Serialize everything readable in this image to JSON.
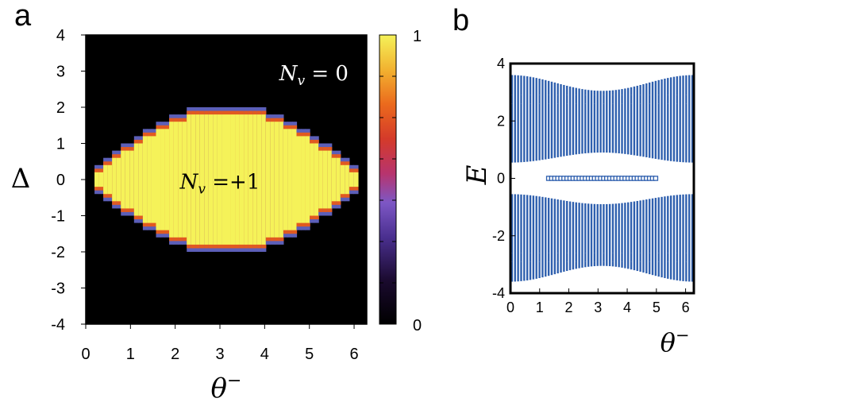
{
  "panels": {
    "a": {
      "label": "a"
    },
    "b": {
      "label": "b"
    }
  },
  "chart_data": [
    {
      "type": "heatmap",
      "panel": "a",
      "title": "",
      "xlabel": "θ⁻",
      "ylabel": "Δ",
      "xlim": [
        0,
        6.2832
      ],
      "ylim": [
        -4,
        4
      ],
      "xticks": [
        "0",
        "1",
        "2",
        "3",
        "4",
        "5",
        "6"
      ],
      "yticks": [
        "4",
        "3",
        "2",
        "1",
        "0",
        "-1",
        "-2",
        "-3",
        "-4"
      ],
      "colorbar": {
        "min": 0,
        "max": 1,
        "labels": [
          "1",
          "0"
        ]
      },
      "region_boundary": {
        "description": "N_v = +1 inside |Δ| < 2|sin(θ⁻/2)|, N_v = 0 outside",
        "max_abs_delta": 2
      },
      "annotations": [
        {
          "text_main": "N",
          "text_sub": "v",
          "text_rest": " = 0",
          "x": 5.1,
          "y": 2.75
        },
        {
          "text_main": "N",
          "text_sub": "v",
          "text_rest": " =+1",
          "x": 3.0,
          "y": -0.25
        }
      ],
      "colors": {
        "outside": "#000000",
        "inside": "#f5f259",
        "edge1": "#e25a1f",
        "edge2": "#5c5fb8"
      }
    },
    {
      "type": "scatter",
      "panel": "b",
      "title": "",
      "xlabel": "θ⁻",
      "ylabel": "E",
      "xlim": [
        0,
        6.2832
      ],
      "ylim": [
        -4,
        4
      ],
      "xticks": [
        "0",
        "1",
        "2",
        "3",
        "4",
        "5",
        "6"
      ],
      "yticks": [
        "4",
        "2",
        "0",
        "-2",
        "-4"
      ],
      "bands": {
        "n_columns": 60,
        "outer_edge": {
          "at_0": 3.6,
          "at_pi": 3.05,
          "at_2pi": 3.6
        },
        "inner_edge": {
          "at_0": 0.55,
          "at_pi": 0.9,
          "at_2pi": 0.55
        },
        "zero_modes": {
          "x_start": 1.3,
          "x_end": 5.0,
          "energy": 0
        }
      },
      "colors": {
        "band": "#2e5fae",
        "zero_mode": "#2e5fae"
      }
    }
  ]
}
